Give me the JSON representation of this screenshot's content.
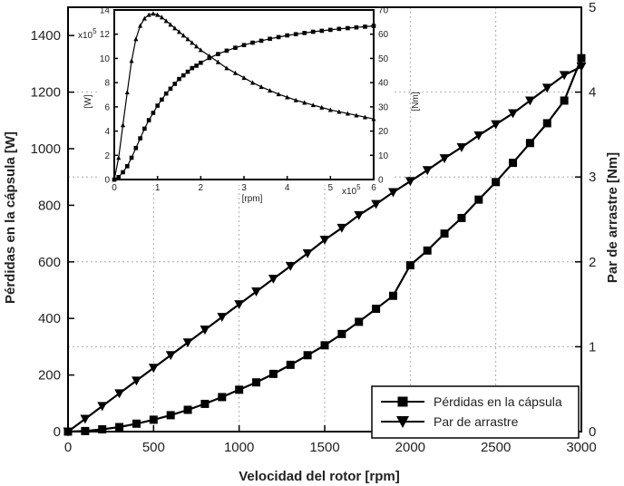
{
  "chart_data": [
    {
      "id": "main",
      "type": "line",
      "title": "",
      "xlabel": "Velocidad del rotor [rpm]",
      "ylabel_left": "Pérdidas en la cápsula [W]",
      "ylabel_right": "Par de arrastre [Nm]",
      "xlim": [
        0,
        3000
      ],
      "ylim_left": [
        0,
        1500
      ],
      "ylim_right": [
        0,
        5
      ],
      "x_ticks": [
        0,
        500,
        1000,
        1500,
        2000,
        2500,
        3000
      ],
      "y_left_ticks": [
        0,
        200,
        400,
        600,
        800,
        1000,
        1200,
        1400
      ],
      "y_right_ticks": [
        0,
        1,
        2,
        3,
        4,
        5
      ],
      "grid": true,
      "legend_position": "bottom-right",
      "series": [
        {
          "name": "Pérdidas en la cápsula",
          "axis": "left",
          "marker": "square",
          "x": [
            0,
            100,
            200,
            300,
            400,
            500,
            600,
            700,
            800,
            900,
            1000,
            1100,
            1200,
            1300,
            1400,
            1500,
            1600,
            1700,
            1800,
            1900,
            2000,
            2100,
            2200,
            2300,
            2400,
            2500,
            2600,
            2700,
            2800,
            2900,
            3000
          ],
          "values": [
            0,
            2,
            8,
            16,
            28,
            42,
            58,
            77,
            98,
            122,
            148,
            174,
            204,
            236,
            270,
            305,
            345,
            388,
            434,
            480,
            588,
            640,
            700,
            755,
            820,
            882,
            950,
            1020,
            1090,
            1170,
            1320
          ]
        },
        {
          "name": "Par de arrastre",
          "axis": "right",
          "marker": "triangle-down",
          "x": [
            0,
            100,
            200,
            300,
            400,
            500,
            600,
            700,
            800,
            900,
            1000,
            1100,
            1200,
            1300,
            1400,
            1500,
            1600,
            1700,
            1800,
            1900,
            2000,
            2100,
            2200,
            2300,
            2400,
            2500,
            2600,
            2700,
            2800,
            2900,
            3000
          ],
          "values": [
            0,
            0.15,
            0.3,
            0.45,
            0.6,
            0.75,
            0.9,
            1.05,
            1.2,
            1.35,
            1.5,
            1.65,
            1.8,
            1.95,
            2.1,
            2.26,
            2.4,
            2.55,
            2.68,
            2.82,
            2.95,
            3.08,
            3.22,
            3.35,
            3.49,
            3.62,
            3.75,
            3.9,
            4.05,
            4.2,
            4.3
          ]
        }
      ]
    },
    {
      "id": "inset",
      "type": "line",
      "xlabel": "[rpm]",
      "ylabel_left": "[W]",
      "ylabel_right": "[Nm]",
      "x_multiplier": "x10",
      "x_multiplier_exp": "5",
      "y_multiplier": "x10",
      "y_multiplier_exp": "5",
      "xlim": [
        0,
        6
      ],
      "ylim_left": [
        0,
        14
      ],
      "ylim_right": [
        0,
        70
      ],
      "x_ticks": [
        0,
        1,
        2,
        3,
        4,
        5,
        6
      ],
      "y_left_ticks": [
        0,
        2,
        4,
        6,
        8,
        10,
        12,
        14
      ],
      "y_right_ticks": [
        0,
        10,
        20,
        30,
        40,
        50,
        60,
        70
      ],
      "grid": false,
      "series": [
        {
          "name": "Pérdidas en la cápsula",
          "axis": "left",
          "marker": "triangle-up",
          "x": [
            0,
            0.1,
            0.2,
            0.3,
            0.4,
            0.5,
            0.6,
            0.7,
            0.8,
            0.9,
            1.0,
            1.1,
            1.2,
            1.3,
            1.4,
            1.5,
            1.6,
            1.7,
            1.8,
            1.9,
            2.0,
            2.2,
            2.4,
            2.6,
            2.8,
            3.0,
            3.2,
            3.4,
            3.6,
            3.8,
            4.0,
            4.2,
            4.4,
            4.6,
            4.8,
            5.0,
            5.2,
            5.4,
            5.6,
            5.8,
            6.0
          ],
          "values": [
            0,
            1.8,
            4.5,
            7.2,
            9.8,
            11.6,
            12.7,
            13.3,
            13.6,
            13.7,
            13.6,
            13.4,
            13.1,
            12.8,
            12.5,
            12.2,
            11.9,
            11.6,
            11.3,
            11.0,
            10.7,
            10.2,
            9.7,
            9.2,
            8.8,
            8.4,
            8.0,
            7.65,
            7.35,
            7.05,
            6.8,
            6.55,
            6.35,
            6.15,
            5.95,
            5.75,
            5.6,
            5.45,
            5.3,
            5.15,
            5.0
          ]
        },
        {
          "name": "Par de arrastre",
          "axis": "right",
          "marker": "square",
          "x": [
            0,
            0.1,
            0.2,
            0.3,
            0.4,
            0.5,
            0.6,
            0.7,
            0.8,
            0.9,
            1.0,
            1.1,
            1.2,
            1.3,
            1.4,
            1.5,
            1.6,
            1.7,
            1.8,
            1.9,
            2.0,
            2.2,
            2.4,
            2.6,
            2.8,
            3.0,
            3.2,
            3.4,
            3.6,
            3.8,
            4.0,
            4.2,
            4.4,
            4.6,
            4.8,
            5.0,
            5.2,
            5.4,
            5.6,
            5.8,
            6.0
          ],
          "values": [
            0,
            1,
            3,
            5.5,
            9,
            13,
            17,
            21,
            24.5,
            27.5,
            30.5,
            33,
            35.5,
            37.5,
            39.5,
            41.5,
            43,
            44.5,
            46,
            47,
            48.2,
            50.2,
            51.8,
            53.2,
            54.4,
            55.5,
            56.5,
            57.3,
            58.1,
            58.8,
            59.5,
            60.0,
            60.5,
            61.0,
            61.4,
            61.8,
            62.2,
            62.5,
            62.8,
            63.1,
            63.4
          ]
        }
      ]
    }
  ]
}
